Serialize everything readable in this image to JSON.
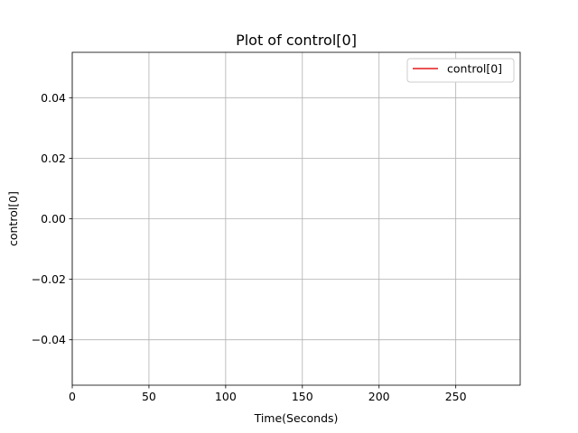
{
  "chart_data": {
    "type": "line",
    "title": "Plot of control[0]",
    "xlabel": "Time(Seconds)",
    "ylabel": "control[0]",
    "xlim": [
      0,
      292
    ],
    "ylim": [
      -0.055,
      0.055
    ],
    "xticks": [
      0,
      50,
      100,
      150,
      200,
      250
    ],
    "yticks": [
      -0.04,
      -0.02,
      0.0,
      0.02,
      0.04
    ],
    "xtick_labels": [
      "0",
      "50",
      "100",
      "150",
      "200",
      "250"
    ],
    "ytick_labels": [
      "−0.04",
      "−0.02",
      "0.00",
      "0.02",
      "0.04"
    ],
    "grid": true,
    "legend_position": "top-right",
    "series": [
      {
        "name": "control[0]",
        "color": "#e31a1c",
        "x": [],
        "y": []
      }
    ]
  }
}
